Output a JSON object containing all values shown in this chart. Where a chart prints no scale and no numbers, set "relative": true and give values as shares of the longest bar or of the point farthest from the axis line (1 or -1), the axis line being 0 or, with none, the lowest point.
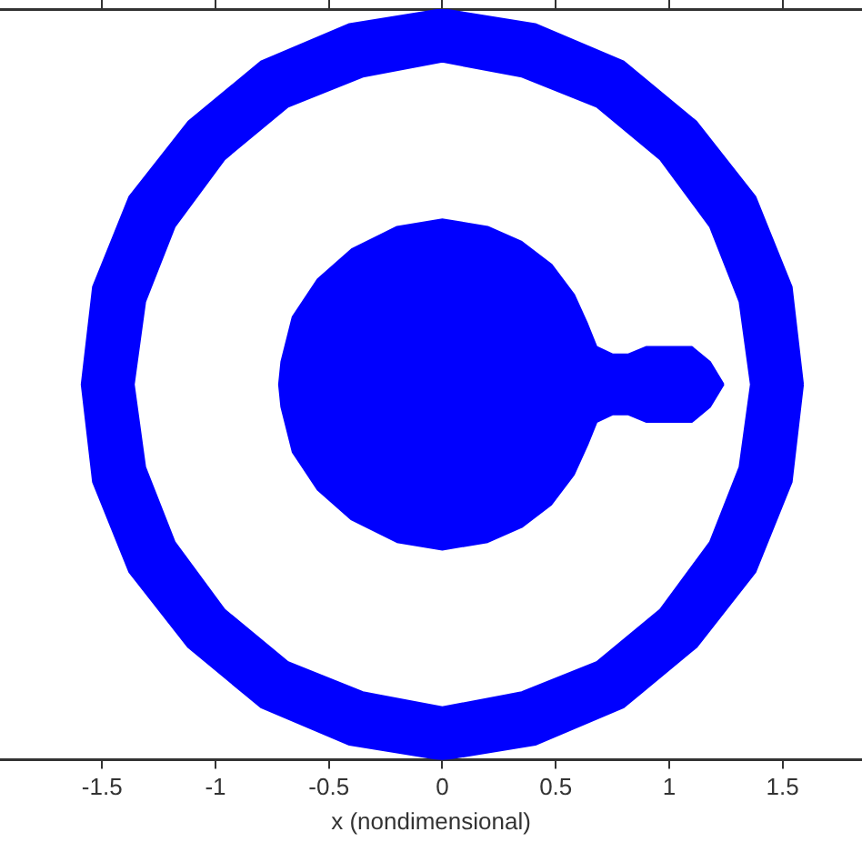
{
  "chart_data": {
    "type": "area",
    "xlabel": "x (nondimensional)",
    "xlim": [
      -1.95,
      1.85
    ],
    "xticks": [
      -1.5,
      -1,
      -0.5,
      0,
      0.5,
      1,
      1.5
    ],
    "relative": true,
    "tick_labels": "x",
    "grid": false,
    "legend": false,
    "series": [
      {
        "color": "#0000ff",
        "x": [
          1.59,
          1.54,
          1.38,
          1.12,
          0.8,
          0.41,
          0,
          -0.41,
          -0.8,
          -1.12,
          -1.38,
          -1.54,
          -1.59,
          -1.54,
          -1.38,
          -1.12,
          -0.8,
          -0.41,
          0,
          0.41,
          0.8,
          1.12,
          1.38,
          1.54,
          1.59,
          null,
          1.36,
          1.31,
          1.18,
          0.96,
          0.68,
          0.35,
          0,
          -0.35,
          -0.68,
          -0.96,
          -1.18,
          -1.31,
          -1.36,
          -1.31,
          -1.18,
          -0.96,
          -0.68,
          -0.35,
          0,
          0.35,
          0.68,
          0.96,
          1.18,
          1.31,
          1.36
        ],
        "values": [
          0.5,
          0.63,
          0.75,
          0.85,
          0.93,
          0.98,
          1,
          0.98,
          0.93,
          0.85,
          0.75,
          0.63,
          0.5,
          0.37,
          0.25,
          0.15,
          0.07,
          0.02,
          0,
          0.02,
          0.07,
          0.15,
          0.25,
          0.37,
          0.5,
          null,
          0.5,
          0.61,
          0.71,
          0.8,
          0.87,
          0.91,
          0.93,
          0.91,
          0.87,
          0.8,
          0.71,
          0.61,
          0.5,
          0.39,
          0.29,
          0.2,
          0.13,
          0.09,
          0.07,
          0.09,
          0.13,
          0.2,
          0.29,
          0.39,
          0.5
        ]
      },
      {
        "color": "#0000ff",
        "x": [
          1.24,
          1.22,
          1.18,
          1.1,
          1.0,
          0.9,
          0.82,
          0.75,
          0.68,
          0.64,
          0.58,
          0.48,
          0.35,
          0.2,
          0,
          -0.2,
          -0.4,
          -0.55,
          -0.66,
          -0.71,
          -0.72,
          -0.71,
          -0.66,
          -0.55,
          -0.4,
          -0.2,
          0,
          0.2,
          0.35,
          0.48,
          0.58,
          0.64,
          0.68,
          0.75,
          0.82,
          0.9,
          1.0,
          1.1,
          1.18,
          1.22,
          1.24
        ],
        "values": [
          0.5,
          0.51,
          0.53,
          0.55,
          0.55,
          0.55,
          0.54,
          0.54,
          0.55,
          0.58,
          0.62,
          0.66,
          0.69,
          0.71,
          0.72,
          0.71,
          0.68,
          0.64,
          0.59,
          0.53,
          0.5,
          0.47,
          0.41,
          0.36,
          0.32,
          0.29,
          0.28,
          0.29,
          0.31,
          0.34,
          0.38,
          0.42,
          0.45,
          0.46,
          0.46,
          0.45,
          0.45,
          0.45,
          0.47,
          0.49,
          0.5
        ]
      }
    ]
  }
}
